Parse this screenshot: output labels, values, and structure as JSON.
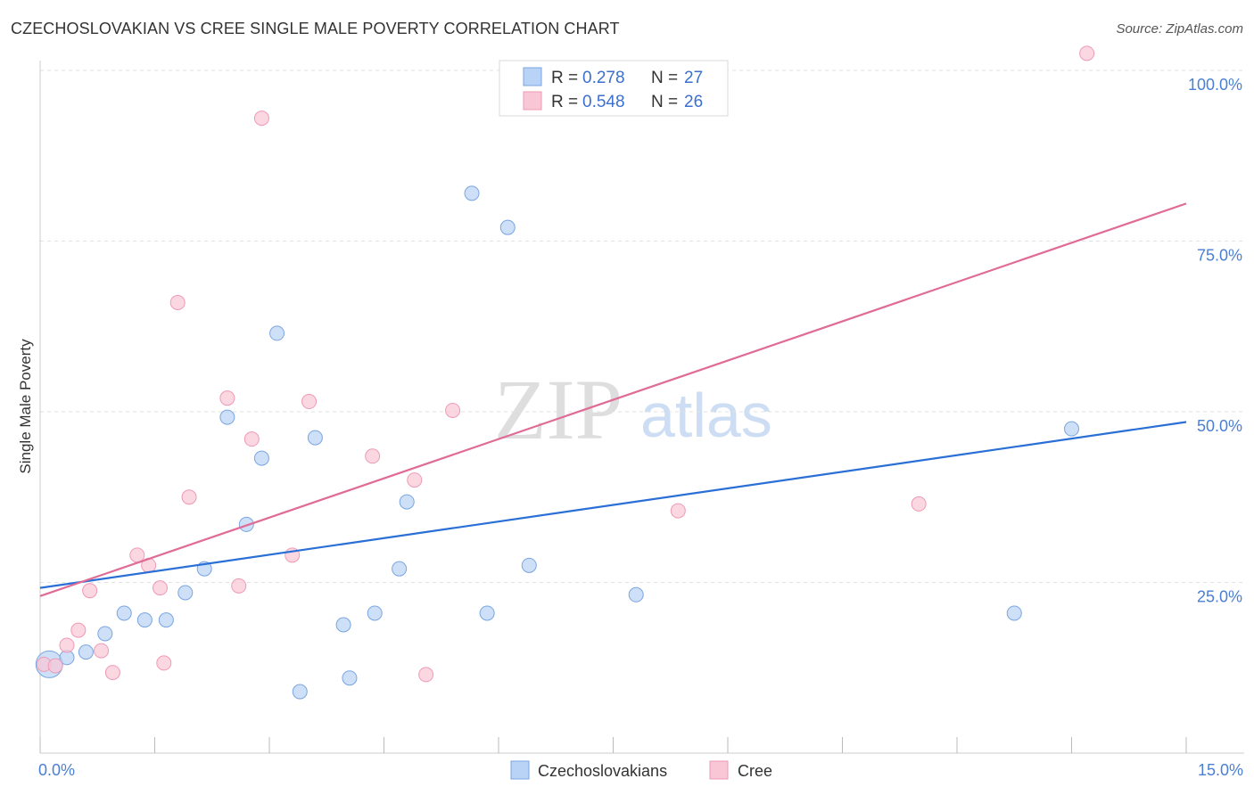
{
  "title": "CZECHOSLOVAKIAN VS CREE SINGLE MALE POVERTY CORRELATION CHART",
  "source": "Source: ZipAtlas.com",
  "watermark": {
    "zip": "ZIP",
    "atlas": "atlas"
  },
  "colors": {
    "czech_fill": "#b8d3f5",
    "czech_stroke": "#7aa5e0",
    "czech_line": "#2a6fd6",
    "cree_fill": "#f9c6d5",
    "cree_stroke": "#ee9ab5",
    "cree_line": "#e06b96",
    "grid": "#e2e2e2",
    "tick_label": "#4a7fd4"
  },
  "legend": {
    "rows": [
      {
        "r_label": "R =",
        "r_value": "0.278",
        "n_label": "N =",
        "n_value": "27"
      },
      {
        "r_label": "R =",
        "r_value": "0.548",
        "n_label": "N =",
        "n_value": "26"
      }
    ]
  },
  "bottom_legend": [
    "Czechoslovakians",
    "Cree"
  ],
  "chart_data": {
    "type": "scatter",
    "title": "CZECHOSLOVAKIAN VS CREE SINGLE MALE POVERTY CORRELATION CHART",
    "xlabel": "",
    "ylabel": "Single Male Poverty",
    "xlim": [
      0,
      15
    ],
    "ylim": [
      0,
      105
    ],
    "x_tick_labels": [
      "0.0%",
      "15.0%"
    ],
    "y_ticks": [
      25,
      50,
      75,
      100
    ],
    "y_tick_labels": [
      "25.0%",
      "50.0%",
      "75.0%",
      "100.0%"
    ],
    "series": [
      {
        "name": "Czechoslovakians",
        "r": 0.278,
        "n": 27,
        "trend": {
          "x": [
            0,
            15
          ],
          "y": [
            24.2,
            48.5
          ]
        },
        "points": [
          {
            "x": 0.12,
            "y": 13.0,
            "big": true
          },
          {
            "x": 0.35,
            "y": 14.0
          },
          {
            "x": 0.6,
            "y": 14.8
          },
          {
            "x": 0.85,
            "y": 17.5
          },
          {
            "x": 1.1,
            "y": 20.5
          },
          {
            "x": 1.37,
            "y": 19.5
          },
          {
            "x": 1.65,
            "y": 19.5
          },
          {
            "x": 1.9,
            "y": 23.5
          },
          {
            "x": 2.15,
            "y": 27.0
          },
          {
            "x": 2.45,
            "y": 49.2
          },
          {
            "x": 2.7,
            "y": 33.5
          },
          {
            "x": 2.9,
            "y": 43.2
          },
          {
            "x": 3.1,
            "y": 61.5
          },
          {
            "x": 3.4,
            "y": 9.0
          },
          {
            "x": 3.6,
            "y": 46.2
          },
          {
            "x": 3.97,
            "y": 18.8
          },
          {
            "x": 4.05,
            "y": 11.0
          },
          {
            "x": 4.38,
            "y": 20.5
          },
          {
            "x": 4.7,
            "y": 27.0
          },
          {
            "x": 4.8,
            "y": 36.8
          },
          {
            "x": 5.65,
            "y": 82.0
          },
          {
            "x": 5.85,
            "y": 20.5
          },
          {
            "x": 6.12,
            "y": 77.0
          },
          {
            "x": 6.4,
            "y": 27.5
          },
          {
            "x": 7.8,
            "y": 23.2
          },
          {
            "x": 12.75,
            "y": 20.5
          },
          {
            "x": 13.5,
            "y": 47.5
          }
        ]
      },
      {
        "name": "Cree",
        "r": 0.548,
        "n": 26,
        "trend": {
          "x": [
            0,
            15
          ],
          "y": [
            23.0,
            80.5
          ]
        },
        "points": [
          {
            "x": 0.05,
            "y": 13.0
          },
          {
            "x": 0.2,
            "y": 12.8
          },
          {
            "x": 0.35,
            "y": 15.8
          },
          {
            "x": 0.5,
            "y": 18.0
          },
          {
            "x": 0.65,
            "y": 23.8
          },
          {
            "x": 0.8,
            "y": 15.0
          },
          {
            "x": 0.95,
            "y": 11.8
          },
          {
            "x": 1.27,
            "y": 29.0
          },
          {
            "x": 1.42,
            "y": 27.5
          },
          {
            "x": 1.57,
            "y": 24.2
          },
          {
            "x": 1.62,
            "y": 13.2
          },
          {
            "x": 1.8,
            "y": 66.0
          },
          {
            "x": 1.95,
            "y": 37.5
          },
          {
            "x": 2.45,
            "y": 52.0
          },
          {
            "x": 2.6,
            "y": 24.5
          },
          {
            "x": 2.77,
            "y": 46.0
          },
          {
            "x": 2.9,
            "y": 93.0
          },
          {
            "x": 3.3,
            "y": 29.0
          },
          {
            "x": 3.52,
            "y": 51.5
          },
          {
            "x": 4.35,
            "y": 43.5
          },
          {
            "x": 4.9,
            "y": 40.0
          },
          {
            "x": 5.05,
            "y": 11.5
          },
          {
            "x": 5.4,
            "y": 50.2
          },
          {
            "x": 8.35,
            "y": 35.5
          },
          {
            "x": 11.5,
            "y": 36.5
          },
          {
            "x": 13.7,
            "y": 102.5
          }
        ]
      }
    ]
  }
}
